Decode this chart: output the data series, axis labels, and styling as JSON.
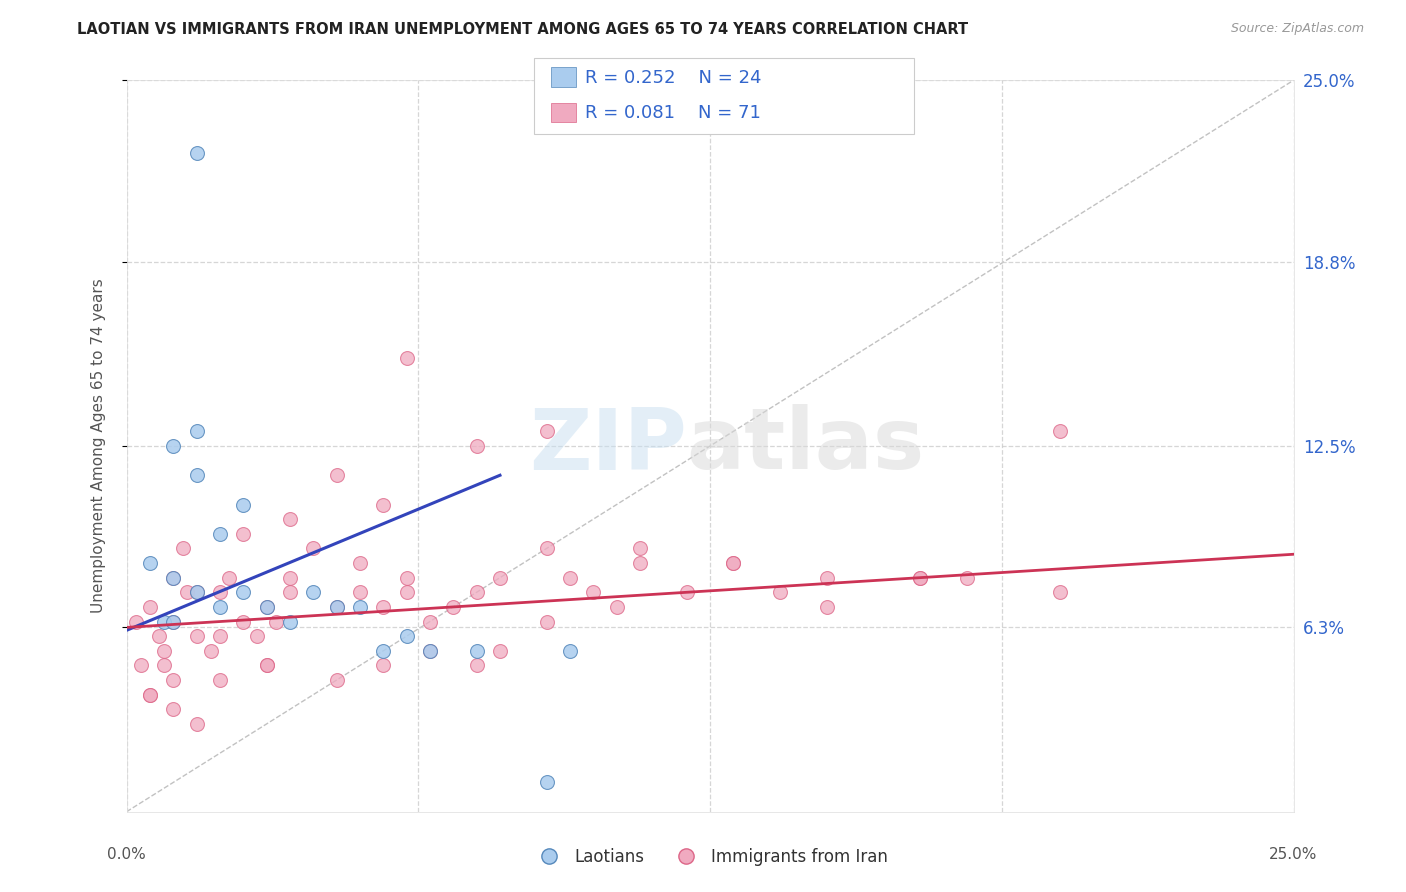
{
  "title": "LAOTIAN VS IMMIGRANTS FROM IRAN UNEMPLOYMENT AMONG AGES 65 TO 74 YEARS CORRELATION CHART",
  "source_text": "Source: ZipAtlas.com",
  "ylabel": "Unemployment Among Ages 65 to 74 years",
  "xlim": [
    0.0,
    25.0
  ],
  "ylim": [
    0.0,
    25.0
  ],
  "ytick_labels": [
    "6.3%",
    "12.5%",
    "18.8%",
    "25.0%"
  ],
  "ytick_values": [
    6.3,
    12.5,
    18.8,
    25.0
  ],
  "xtick_values": [
    0.0,
    6.25,
    12.5,
    18.75,
    25.0
  ],
  "background_color": "#ffffff",
  "grid_color": "#cccccc",
  "watermark_zip": "ZIP",
  "watermark_atlas": "atlas",
  "laotian_color": "#aaccee",
  "iran_color": "#f0aac0",
  "laotian_edge": "#5588bb",
  "iran_edge": "#dd6688",
  "trendline1_color": "#3344bb",
  "trendline2_color": "#cc3355",
  "diagonal_color": "#bbbbbb",
  "legend_color": "#3366cc",
  "laotian_x": [
    1.5,
    2.0,
    2.5,
    1.0,
    1.5,
    0.5,
    1.0,
    1.5,
    2.0,
    2.5,
    3.0,
    3.5,
    4.0,
    4.5,
    5.0,
    5.5,
    6.0,
    6.5,
    7.5,
    9.5,
    1.5,
    0.8,
    9.0,
    1.0
  ],
  "laotian_y": [
    13.0,
    9.5,
    10.5,
    12.5,
    11.5,
    8.5,
    8.0,
    7.5,
    7.0,
    7.5,
    7.0,
    6.5,
    7.5,
    7.0,
    7.0,
    5.5,
    6.0,
    5.5,
    5.5,
    5.5,
    22.5,
    6.5,
    1.0,
    6.5
  ],
  "iran_x": [
    0.2,
    0.3,
    0.5,
    0.5,
    0.7,
    0.8,
    0.8,
    1.0,
    1.0,
    1.0,
    1.2,
    1.3,
    1.5,
    1.5,
    1.8,
    2.0,
    2.0,
    2.2,
    2.5,
    2.5,
    2.8,
    3.0,
    3.0,
    3.2,
    3.5,
    3.5,
    3.5,
    4.0,
    4.5,
    5.0,
    5.0,
    5.5,
    6.0,
    6.0,
    6.5,
    7.0,
    7.5,
    8.0,
    9.0,
    9.5,
    10.0,
    10.5,
    11.0,
    12.0,
    13.0,
    14.0,
    15.0,
    17.0,
    18.0,
    20.0,
    0.5,
    1.0,
    1.5,
    2.0,
    3.0,
    4.5,
    5.5,
    6.5,
    7.5,
    8.0,
    9.0,
    11.0,
    13.0,
    15.0,
    17.0,
    20.0,
    6.0,
    4.5,
    5.5,
    7.5,
    9.0
  ],
  "iran_y": [
    6.5,
    5.0,
    7.0,
    4.0,
    6.0,
    5.0,
    5.5,
    8.0,
    6.5,
    4.5,
    9.0,
    7.5,
    6.0,
    7.5,
    5.5,
    6.0,
    7.5,
    8.0,
    6.5,
    9.5,
    6.0,
    7.0,
    5.0,
    6.5,
    7.5,
    8.0,
    10.0,
    9.0,
    7.0,
    7.5,
    8.5,
    7.0,
    7.5,
    8.0,
    6.5,
    7.0,
    7.5,
    8.0,
    6.5,
    8.0,
    7.5,
    7.0,
    8.5,
    7.5,
    8.5,
    7.5,
    7.0,
    8.0,
    8.0,
    7.5,
    4.0,
    3.5,
    3.0,
    4.5,
    5.0,
    4.5,
    5.0,
    5.5,
    5.0,
    5.5,
    13.0,
    9.0,
    8.5,
    8.0,
    8.0,
    13.0,
    15.5,
    11.5,
    10.5,
    12.5,
    9.0
  ]
}
